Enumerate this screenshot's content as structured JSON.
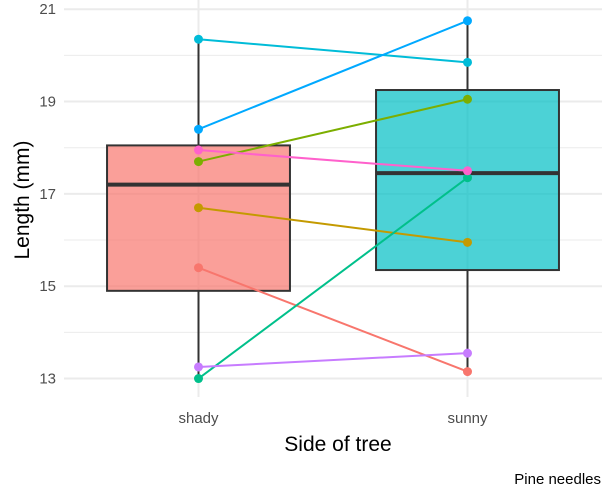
{
  "chart_data": {
    "type": "box",
    "title": "",
    "xlabel": "Side of tree",
    "ylabel": "Length (mm)",
    "caption": "Pine needles",
    "categories": [
      "shady",
      "sunny"
    ],
    "ylim": [
      12.6,
      21.2
    ],
    "y_ticks": [
      13,
      15,
      17,
      19,
      21
    ],
    "grid": true,
    "boxes": [
      {
        "category": "shady",
        "q1": 14.9,
        "median": 17.2,
        "q3": 18.05,
        "whisker_low": 13.0,
        "whisker_high": 20.35,
        "fill": "#F8766D"
      },
      {
        "category": "sunny",
        "q1": 15.35,
        "median": 17.45,
        "q3": 19.25,
        "whisker_low": 13.15,
        "whisker_high": 20.75,
        "fill": "#00BFC4"
      }
    ],
    "paired_series": [
      {
        "values": [
          15.4,
          13.15
        ],
        "color": "#F8766D"
      },
      {
        "values": [
          16.7,
          15.95
        ],
        "color": "#C49A00"
      },
      {
        "values": [
          17.7,
          19.05
        ],
        "color": "#7CAE00"
      },
      {
        "values": [
          13.0,
          17.35
        ],
        "color": "#00C08B"
      },
      {
        "values": [
          20.35,
          19.85
        ],
        "color": "#00BCD8"
      },
      {
        "values": [
          18.4,
          20.75
        ],
        "color": "#00A9FF"
      },
      {
        "values": [
          13.25,
          13.55
        ],
        "color": "#C77CFF"
      },
      {
        "values": [
          17.95,
          17.5
        ],
        "color": "#FF61CC"
      }
    ]
  }
}
